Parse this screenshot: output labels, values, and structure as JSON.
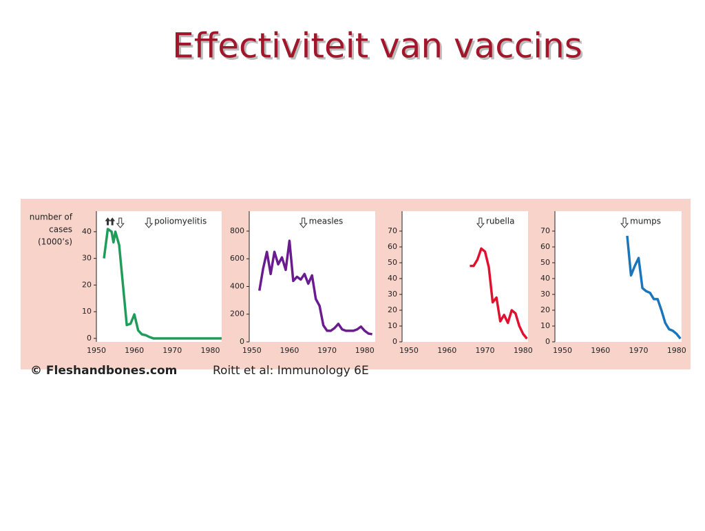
{
  "title": "Effectiviteit van vaccins",
  "credit": {
    "site": "© Fleshandbones.com",
    "text": "Roitt et al: Immunology 6E"
  },
  "chart_data": [
    {
      "type": "line",
      "title": "poliomyelitis",
      "ylabel": [
        "number of",
        "cases",
        "(1000’s)"
      ],
      "xlim": [
        1950,
        1983
      ],
      "ylim": [
        -1.3,
        47.7
      ],
      "xticks": [
        1950,
        1960,
        1970,
        1980
      ],
      "yticks": [
        0,
        10,
        20,
        30,
        40
      ],
      "arrows": [
        {
          "x": 1953,
          "dir": "up"
        },
        {
          "x": 1954.2,
          "dir": "up"
        },
        {
          "x": 1956.3,
          "dir": "down"
        },
        {
          "x": 1963.8,
          "dir": "down"
        }
      ],
      "series": [
        {
          "name": "poliomyelitis",
          "color": "#1f9c5a",
          "x": [
            1952,
            1953,
            1954,
            1954.5,
            1955,
            1956,
            1957,
            1958,
            1959,
            1960,
            1961,
            1962,
            1963,
            1964,
            1965,
            1983
          ],
          "values": [
            30,
            41,
            40,
            36,
            40,
            35,
            20,
            5,
            5.5,
            9,
            3,
            1.5,
            1.2,
            0.5,
            0,
            0
          ]
        }
      ]
    },
    {
      "type": "line",
      "title": "measles",
      "xlim": [
        1949.3,
        1982.8
      ],
      "ylim": [
        0,
        944
      ],
      "xticks": [
        1950,
        1960,
        1970,
        1980
      ],
      "yticks": [
        0,
        200,
        400,
        600,
        800
      ],
      "arrows": [
        {
          "x": 1963.7,
          "dir": "down"
        }
      ],
      "series": [
        {
          "name": "measles",
          "color": "#6a1b8f",
          "x": [
            1952,
            1953,
            1954,
            1955,
            1956,
            1957,
            1958,
            1959,
            1960,
            1961,
            1962,
            1963,
            1964,
            1965,
            1966,
            1967,
            1968,
            1969,
            1970,
            1971,
            1972,
            1973,
            1974,
            1975,
            1976,
            1977,
            1978,
            1979,
            1980,
            1981,
            1982
          ],
          "values": [
            370,
            530,
            650,
            490,
            650,
            560,
            610,
            520,
            730,
            440,
            470,
            450,
            490,
            420,
            480,
            310,
            260,
            120,
            80,
            80,
            100,
            130,
            90,
            80,
            80,
            80,
            90,
            110,
            80,
            60,
            55
          ]
        }
      ]
    },
    {
      "type": "line",
      "title": "rubella",
      "xlim": [
        1948.2,
        1981.3
      ],
      "ylim": [
        0,
        82.6
      ],
      "xticks": [
        1950,
        1960,
        1970,
        1980
      ],
      "yticks": [
        0,
        10,
        20,
        30,
        40,
        50,
        60,
        70
      ],
      "arrows": [
        {
          "x": 1968.8,
          "dir": "down"
        }
      ],
      "series": [
        {
          "name": "rubella",
          "color": "#e0102f",
          "x": [
            1966,
            1967,
            1968,
            1969,
            1970,
            1971,
            1972,
            1973,
            1974,
            1975,
            1976,
            1977,
            1978,
            1979,
            1980,
            1981
          ],
          "values": [
            48,
            48,
            52,
            59,
            57,
            47,
            25,
            28,
            13,
            17,
            12,
            20,
            18,
            10,
            5,
            2
          ]
        }
      ]
    },
    {
      "type": "line",
      "title": "mumps",
      "xlim": [
        1948,
        1981.3
      ],
      "ylim": [
        0,
        82.6
      ],
      "xticks": [
        1950,
        1960,
        1970,
        1980
      ],
      "yticks": [
        0,
        10,
        20,
        30,
        40,
        50,
        60,
        70
      ],
      "arrows": [
        {
          "x": 1966.3,
          "dir": "down"
        }
      ],
      "series": [
        {
          "name": "mumps",
          "color": "#1a75bb",
          "x": [
            1967,
            1968,
            1969,
            1970,
            1971,
            1972,
            1973,
            1974,
            1975,
            1976,
            1977,
            1978,
            1979,
            1980,
            1981
          ],
          "values": [
            67,
            42,
            48,
            53,
            34,
            32,
            31,
            27,
            27,
            20,
            12,
            8,
            7,
            5,
            2
          ]
        }
      ]
    }
  ]
}
